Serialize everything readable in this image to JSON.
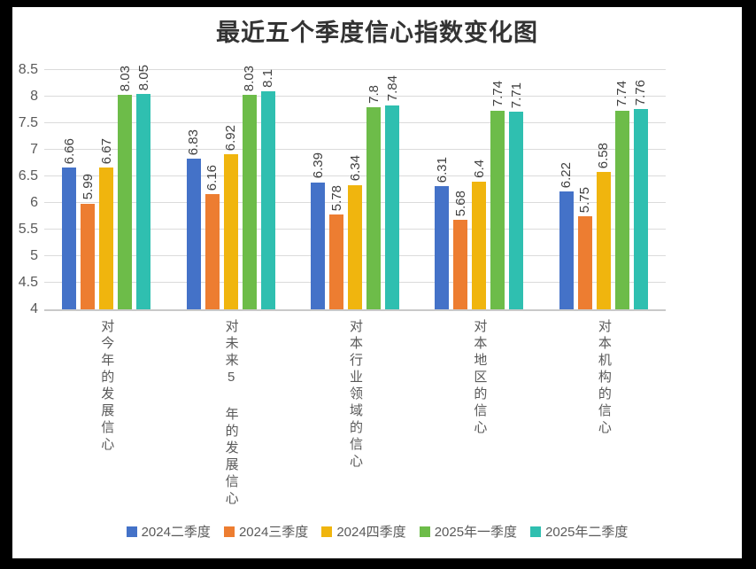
{
  "title": "最近五个季度信心指数变化图",
  "chart_data": {
    "type": "bar",
    "title": "最近五个季度信心指数变化图",
    "categories": [
      "对今年的发展信心",
      "对未来5 年的发展信心",
      "对本行业领域的信心",
      "对本地区的信心",
      "对本机构的信心"
    ],
    "series": [
      {
        "name": "2024二季度",
        "color": "#4472C8",
        "values": [
          6.66,
          6.83,
          6.39,
          6.31,
          6.22
        ]
      },
      {
        "name": "2024三季度",
        "color": "#ED7D31",
        "values": [
          5.99,
          6.16,
          5.78,
          5.68,
          5.75
        ]
      },
      {
        "name": "2024四季度",
        "color": "#F0B50E",
        "values": [
          6.67,
          6.92,
          6.34,
          6.4,
          6.58
        ]
      },
      {
        "name": "2025年一季度",
        "color": "#6DBC49",
        "values": [
          8.03,
          8.03,
          7.8,
          7.74,
          7.74
        ]
      },
      {
        "name": "2025年二季度",
        "color": "#2FBFB0",
        "values": [
          8.05,
          8.1,
          7.84,
          7.71,
          7.76
        ]
      }
    ],
    "ylim": [
      4,
      8.5
    ],
    "ytick_step": 0.5,
    "yticks": [
      "8.5",
      "8",
      "7.5",
      "7",
      "6.5",
      "6",
      "5.5",
      "5",
      "4.5",
      "4"
    ],
    "grid": true,
    "legend_position": "bottom",
    "data_labels_rotation": -90,
    "colors": {
      "grid": "#DBDBDB",
      "axis_line": "#C9C9C9",
      "tick_label": "#595959",
      "value_label": "#404040",
      "title": "#333333",
      "plot_background": "#FFFFFF",
      "outer_frame": "#000000"
    }
  }
}
